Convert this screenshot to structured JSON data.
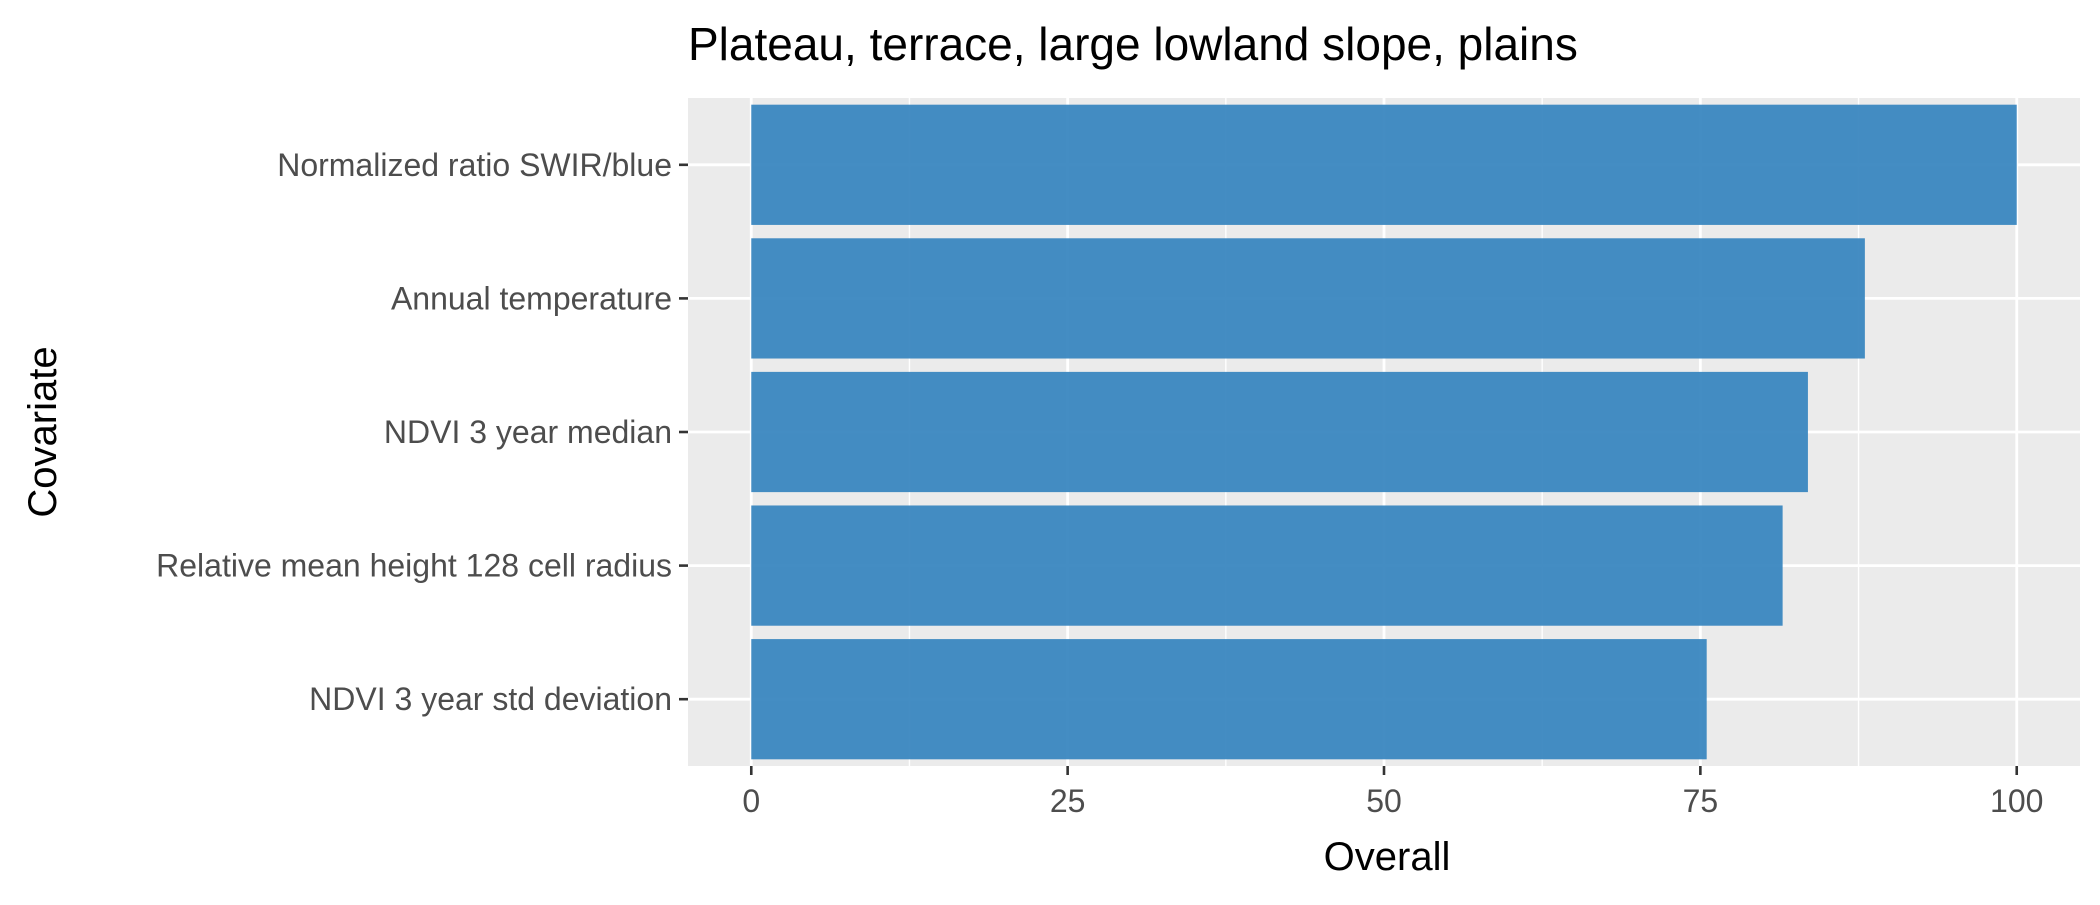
{
  "chart_data": {
    "type": "bar",
    "orientation": "horizontal",
    "title": "Plateau, terrace, large lowland slope, plains",
    "xlabel": "Overall",
    "ylabel": "Covariate",
    "categories": [
      "Normalized ratio SWIR/blue",
      "Annual temperature",
      "NDVI 3 year median",
      "Relative mean height 128 cell radius",
      "NDVI 3 year std deviation"
    ],
    "values": [
      100,
      88,
      83.5,
      81.5,
      75.5
    ],
    "xlim": [
      -5,
      105
    ],
    "xticks": [
      0,
      25,
      50,
      75,
      100
    ],
    "xtick_labels": [
      "0",
      "25",
      "50",
      "75",
      "100"
    ],
    "grid": true,
    "legend": "none",
    "colors": {
      "bar": "#3a87c0",
      "panel": "#ebebeb",
      "grid": "#ffffff"
    }
  }
}
